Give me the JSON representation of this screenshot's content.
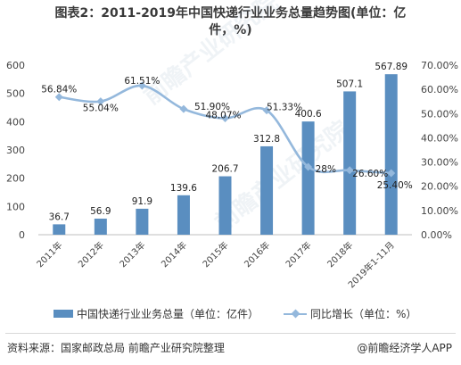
{
  "title": {
    "line1": "图表2：2011-2019年中国快递行业业务总量趋势图(单位：亿",
    "line2": "件，%)"
  },
  "legend": {
    "bars": "中国快递行业业务总量（单位：亿件）",
    "line": "同比增长（单位：%）"
  },
  "footer": {
    "source": "资料来源：国家邮政总局 前瞻产业研究院整理",
    "brand": "@前瞻经济学人APP"
  },
  "watermark": "前瞻产业研究院",
  "colors": {
    "bar": "#5a8ec0",
    "line": "#94b8dc"
  },
  "chart_data": {
    "type": "bar",
    "categories": [
      "2011年",
      "2012年",
      "2013年",
      "2014年",
      "2015年",
      "2016年",
      "2017年",
      "2018年",
      "2019年1-11月"
    ],
    "series": [
      {
        "name": "中国快递行业业务总量（单位：亿件）",
        "type": "bar",
        "axis": "left",
        "values": [
          36.7,
          56.9,
          91.9,
          139.6,
          206.7,
          312.8,
          400.6,
          507.1,
          567.89
        ],
        "labels": [
          "36.7",
          "56.9",
          "91.9",
          "139.6",
          "206.7",
          "312.8",
          "400.6",
          "507.1",
          "567.89"
        ]
      },
      {
        "name": "同比增长（单位：%）",
        "type": "line",
        "axis": "right",
        "values": [
          56.84,
          55.04,
          61.51,
          51.9,
          48.07,
          51.33,
          28,
          26.6,
          25.4
        ],
        "labels": [
          "56.84%",
          "55.04%",
          "61.51%",
          "51.90%",
          "48.07%",
          "51.33%",
          "28%",
          "26.60%",
          "25.40%"
        ]
      }
    ],
    "y_left": {
      "min": 0,
      "max": 600,
      "ticks": [
        "0",
        "100",
        "200",
        "300",
        "400",
        "500",
        "600"
      ]
    },
    "y_right": {
      "min": 0,
      "max": 70,
      "ticks": [
        "0.00%",
        "10.00%",
        "20.00%",
        "30.00%",
        "40.00%",
        "50.00%",
        "60.00%",
        "70.00%"
      ]
    },
    "legend_position": "bottom",
    "grid": false
  }
}
